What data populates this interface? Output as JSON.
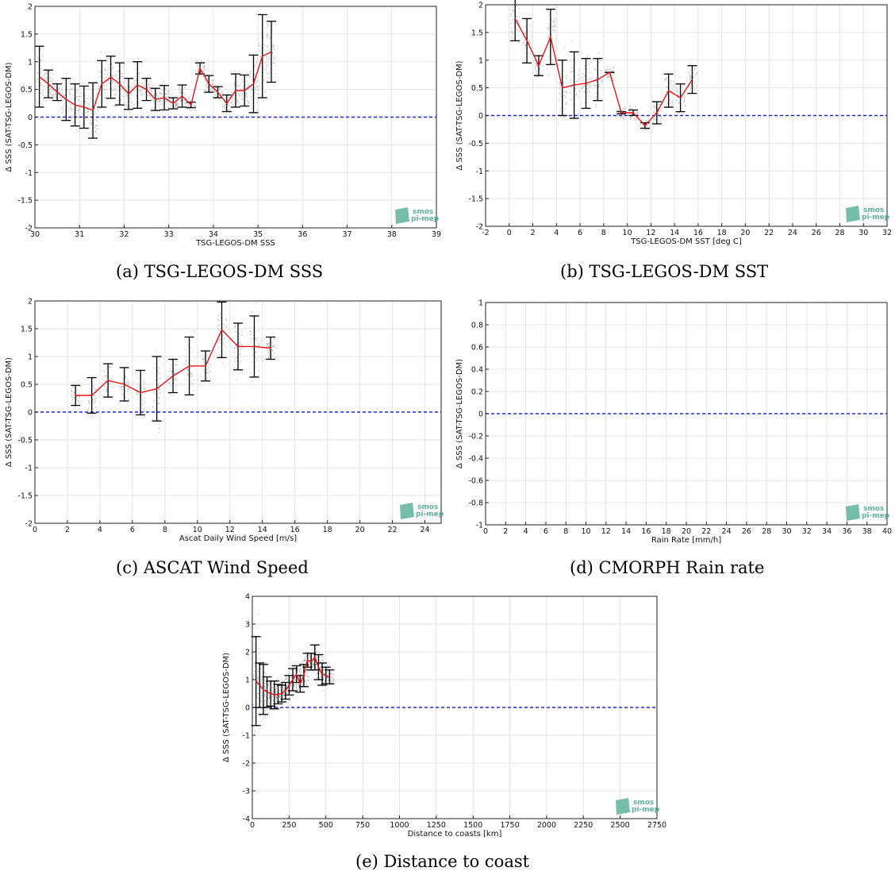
{
  "captions": [
    "(a) TSG-LEGOS-DM SSS",
    "(b) TSG-LEGOS-DM SST",
    "(c) ASCAT Wind Speed",
    "(d) CMORPH Rain rate",
    "(e) Distance to coast"
  ],
  "logo": {
    "line1": "smos",
    "line2": "pi-mep",
    "color": "#5fb39a"
  },
  "colors": {
    "mean_line": "#e8141b",
    "error_bar": "#000000",
    "zero_line": "#1f2ccc",
    "scatter": "#555555",
    "grid": "#e3e3e3"
  },
  "chart_data": [
    {
      "id": "a",
      "type": "line",
      "title": "",
      "xlabel": "TSG-LEGOS-DM SSS",
      "ylabel": "Δ SSS (SAT-TSG-LEGOS-DM)",
      "xlim": [
        30,
        39
      ],
      "ylim": [
        -2,
        2
      ],
      "xticks": [
        30,
        31,
        32,
        33,
        34,
        35,
        36,
        37,
        38,
        39
      ],
      "yticks": [
        -2,
        -1.5,
        -1,
        -0.5,
        0,
        0.5,
        1,
        1.5,
        2
      ],
      "grid": true,
      "zero_line": 0,
      "series": [
        {
          "x": [
            30.1,
            30.3,
            30.5,
            30.7,
            30.9,
            31.1,
            31.3,
            31.5,
            31.7,
            31.9,
            32.1,
            32.3,
            32.5,
            32.7,
            32.9,
            33.1,
            33.3,
            33.5,
            33.7,
            33.9,
            34.1,
            34.3,
            34.5,
            34.7,
            34.9,
            35.1,
            35.3
          ],
          "y": [
            0.73,
            0.6,
            0.45,
            0.32,
            0.22,
            0.18,
            0.12,
            0.6,
            0.72,
            0.6,
            0.42,
            0.58,
            0.5,
            0.32,
            0.35,
            0.25,
            0.38,
            0.22,
            0.88,
            0.6,
            0.45,
            0.25,
            0.48,
            0.48,
            0.6,
            1.1,
            1.18
          ],
          "err": [
            0.55,
            0.25,
            0.15,
            0.38,
            0.38,
            0.38,
            0.5,
            0.42,
            0.38,
            0.38,
            0.28,
            0.42,
            0.2,
            0.2,
            0.22,
            0.1,
            0.2,
            0.05,
            0.1,
            0.15,
            0.1,
            0.15,
            0.3,
            0.28,
            0.52,
            0.75,
            0.55
          ]
        }
      ]
    },
    {
      "id": "b",
      "type": "line",
      "title": "",
      "xlabel": "TSG-LEGOS-DM SST [deg C]",
      "ylabel": "Δ SSS (SAT-TSG-LEGOS-DM)",
      "xlim": [
        -2,
        32
      ],
      "ylim": [
        -2,
        2
      ],
      "xticks": [
        -2,
        0,
        2,
        4,
        6,
        8,
        10,
        12,
        14,
        16,
        18,
        20,
        22,
        24,
        26,
        28,
        30,
        32
      ],
      "yticks": [
        -2,
        -1.5,
        -1,
        -0.5,
        0,
        0.5,
        1,
        1.5,
        2
      ],
      "grid": true,
      "zero_line": 0,
      "series": [
        {
          "x": [
            0.5,
            1.5,
            2.5,
            3.5,
            4.5,
            5.5,
            6.5,
            7.5,
            8.5,
            9.5,
            10.5,
            11.5,
            12.5,
            13.5,
            14.5,
            15.5
          ],
          "y": [
            1.75,
            1.35,
            0.9,
            1.42,
            0.5,
            0.55,
            0.58,
            0.65,
            0.78,
            0.05,
            0.05,
            -0.18,
            0.05,
            0.45,
            0.32,
            0.65
          ],
          "err": [
            0.4,
            0.4,
            0.18,
            0.5,
            0.5,
            0.6,
            0.45,
            0.38,
            0.0,
            0.02,
            0.05,
            0.05,
            0.2,
            0.3,
            0.25,
            0.25
          ]
        }
      ]
    },
    {
      "id": "c",
      "type": "line",
      "title": "",
      "xlabel": "Ascat Daily Wind Speed [m/s]",
      "ylabel": "Δ SSS (SAT-TSG-LEGOS-DM)",
      "xlim": [
        0,
        25
      ],
      "ylim": [
        -2,
        2
      ],
      "xticks": [
        0,
        2,
        4,
        6,
        8,
        10,
        12,
        14,
        16,
        18,
        20,
        22,
        24
      ],
      "yticks": [
        -2,
        -1.5,
        -1,
        -0.5,
        0,
        0.5,
        1,
        1.5,
        2
      ],
      "grid": true,
      "zero_line": 0,
      "series": [
        {
          "x": [
            2.5,
            3.5,
            4.5,
            5.5,
            6.5,
            7.5,
            8.5,
            9.5,
            10.5,
            11.5,
            12.5,
            13.5,
            14.5
          ],
          "y": [
            0.3,
            0.3,
            0.57,
            0.5,
            0.35,
            0.42,
            0.65,
            0.83,
            0.83,
            1.48,
            1.18,
            1.18,
            1.15
          ],
          "err": [
            0.18,
            0.32,
            0.3,
            0.3,
            0.4,
            0.58,
            0.3,
            0.52,
            0.27,
            0.5,
            0.42,
            0.55,
            0.2
          ]
        }
      ]
    },
    {
      "id": "d",
      "type": "line",
      "title": "",
      "xlabel": "Rain Rate [mm/h]",
      "ylabel": "Δ SSS (SAT-TSG-LEGOS-DM)",
      "xlim": [
        0,
        40
      ],
      "ylim": [
        -1,
        1
      ],
      "xticks": [
        0,
        2,
        4,
        6,
        8,
        10,
        12,
        14,
        16,
        18,
        20,
        22,
        24,
        26,
        28,
        30,
        32,
        34,
        36,
        38,
        40
      ],
      "yticks": [
        -1,
        -0.8,
        -0.6,
        -0.4,
        -0.2,
        0,
        0.2,
        0.4,
        0.6,
        0.8,
        1
      ],
      "grid": true,
      "zero_line": 0,
      "series": []
    },
    {
      "id": "e",
      "type": "line",
      "title": "",
      "xlabel": "Distance to coasts [km]",
      "ylabel": "Δ SSS (SAT-TSG-LEGOS-DM)",
      "xlim": [
        0,
        2750
      ],
      "ylim": [
        -4,
        4
      ],
      "xticks": [
        0,
        250,
        500,
        750,
        1000,
        1250,
        1500,
        1750,
        2000,
        2250,
        2500,
        2750
      ],
      "yticks": [
        -4,
        -3,
        -2,
        -1,
        0,
        1,
        2,
        3,
        4
      ],
      "grid": true,
      "zero_line": 0,
      "series": [
        {
          "x": [
            25,
            50,
            75,
            100,
            125,
            150,
            175,
            200,
            225,
            250,
            275,
            300,
            325,
            350,
            375,
            400,
            425,
            450,
            475,
            500,
            525
          ],
          "y": [
            0.95,
            0.8,
            0.65,
            0.55,
            0.5,
            0.45,
            0.48,
            0.5,
            0.6,
            0.8,
            1.0,
            1.2,
            0.85,
            1.15,
            1.7,
            1.65,
            1.8,
            1.45,
            1.2,
            1.15,
            1.1
          ],
          "err": [
            1.6,
            0.8,
            0.9,
            0.55,
            0.45,
            0.5,
            0.35,
            0.3,
            0.3,
            0.35,
            0.4,
            0.3,
            0.3,
            0.4,
            0.25,
            0.3,
            0.45,
            0.45,
            0.4,
            0.3,
            0.25
          ]
        }
      ]
    }
  ]
}
